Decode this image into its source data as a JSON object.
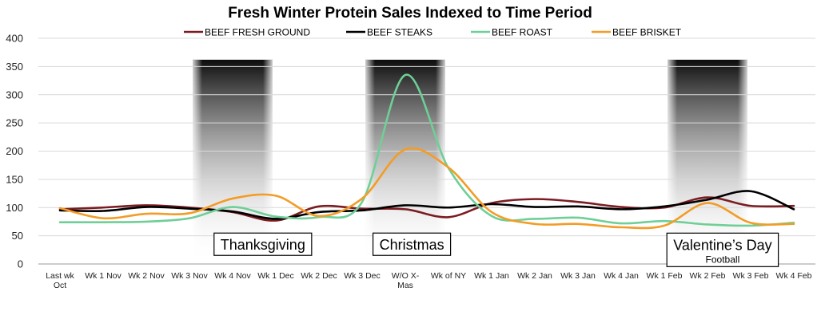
{
  "chart_data": {
    "type": "line",
    "title": "Fresh Winter Protein Sales Indexed to Time Period",
    "xlabel": "",
    "ylabel": "",
    "ylim": [
      0,
      400
    ],
    "yticks": [
      0,
      50,
      100,
      150,
      200,
      250,
      300,
      350,
      400
    ],
    "grid": "horizontal",
    "legend_position": "top",
    "categories": [
      [
        "Last wk",
        "Oct"
      ],
      [
        "Wk 1 Nov"
      ],
      [
        "Wk 2 Nov"
      ],
      [
        "Wk 3 Nov"
      ],
      [
        "Wk 4 Nov"
      ],
      [
        "Wk 1 Dec"
      ],
      [
        "Wk 2 Dec"
      ],
      [
        "Wk 3 Dec"
      ],
      [
        "W/O X-",
        "Mas"
      ],
      [
        "Wk of NY"
      ],
      [
        "Wk 1 Jan"
      ],
      [
        "Wk 2 Jan"
      ],
      [
        "Wk 3 Jan"
      ],
      [
        "Wk 4 Jan"
      ],
      [
        "Wk 1 Feb"
      ],
      [
        "Wk 2 Feb"
      ],
      [
        "Wk 3 Feb"
      ],
      [
        "Wk 4 Feb"
      ]
    ],
    "series": [
      {
        "name": "BEEF FRESH GROUND",
        "color": "#7b1c22",
        "values": [
          97,
          100,
          104,
          100,
          92,
          77,
          102,
          98,
          97,
          83,
          108,
          115,
          110,
          101,
          100,
          118,
          103,
          103
        ]
      },
      {
        "name": "BEEF STEAKS",
        "color": "#000000",
        "values": [
          95,
          94,
          101,
          98,
          93,
          80,
          92,
          95,
          104,
          100,
          106,
          101,
          102,
          97,
          102,
          114,
          129,
          97
        ]
      },
      {
        "name": "BEEF ROAST",
        "color": "#6fcf97",
        "values": [
          74,
          74,
          75,
          81,
          101,
          84,
          83,
          110,
          335,
          170,
          85,
          80,
          82,
          72,
          76,
          70,
          68,
          73
        ]
      },
      {
        "name": "BEEF BRISKET",
        "color": "#f39c26",
        "values": [
          99,
          81,
          89,
          90,
          116,
          121,
          85,
          116,
          203,
          171,
          92,
          71,
          71,
          65,
          68,
          108,
          73,
          71
        ]
      }
    ],
    "highlight_bands": [
      {
        "category_index": 4,
        "color": "#000000"
      },
      {
        "category_index": 8,
        "color": "#000000"
      },
      {
        "category_index": 15,
        "color": "#000000"
      }
    ],
    "annotations": [
      {
        "lines": [
          "Thanksgiving"
        ],
        "category_index": 4.7,
        "value": 35
      },
      {
        "lines": [
          "Christmas"
        ],
        "category_index": 8.15,
        "value": 35
      },
      {
        "lines": [
          "Valentine’s Day",
          "Football"
        ],
        "category_index": 15.35,
        "value": 25
      }
    ]
  }
}
